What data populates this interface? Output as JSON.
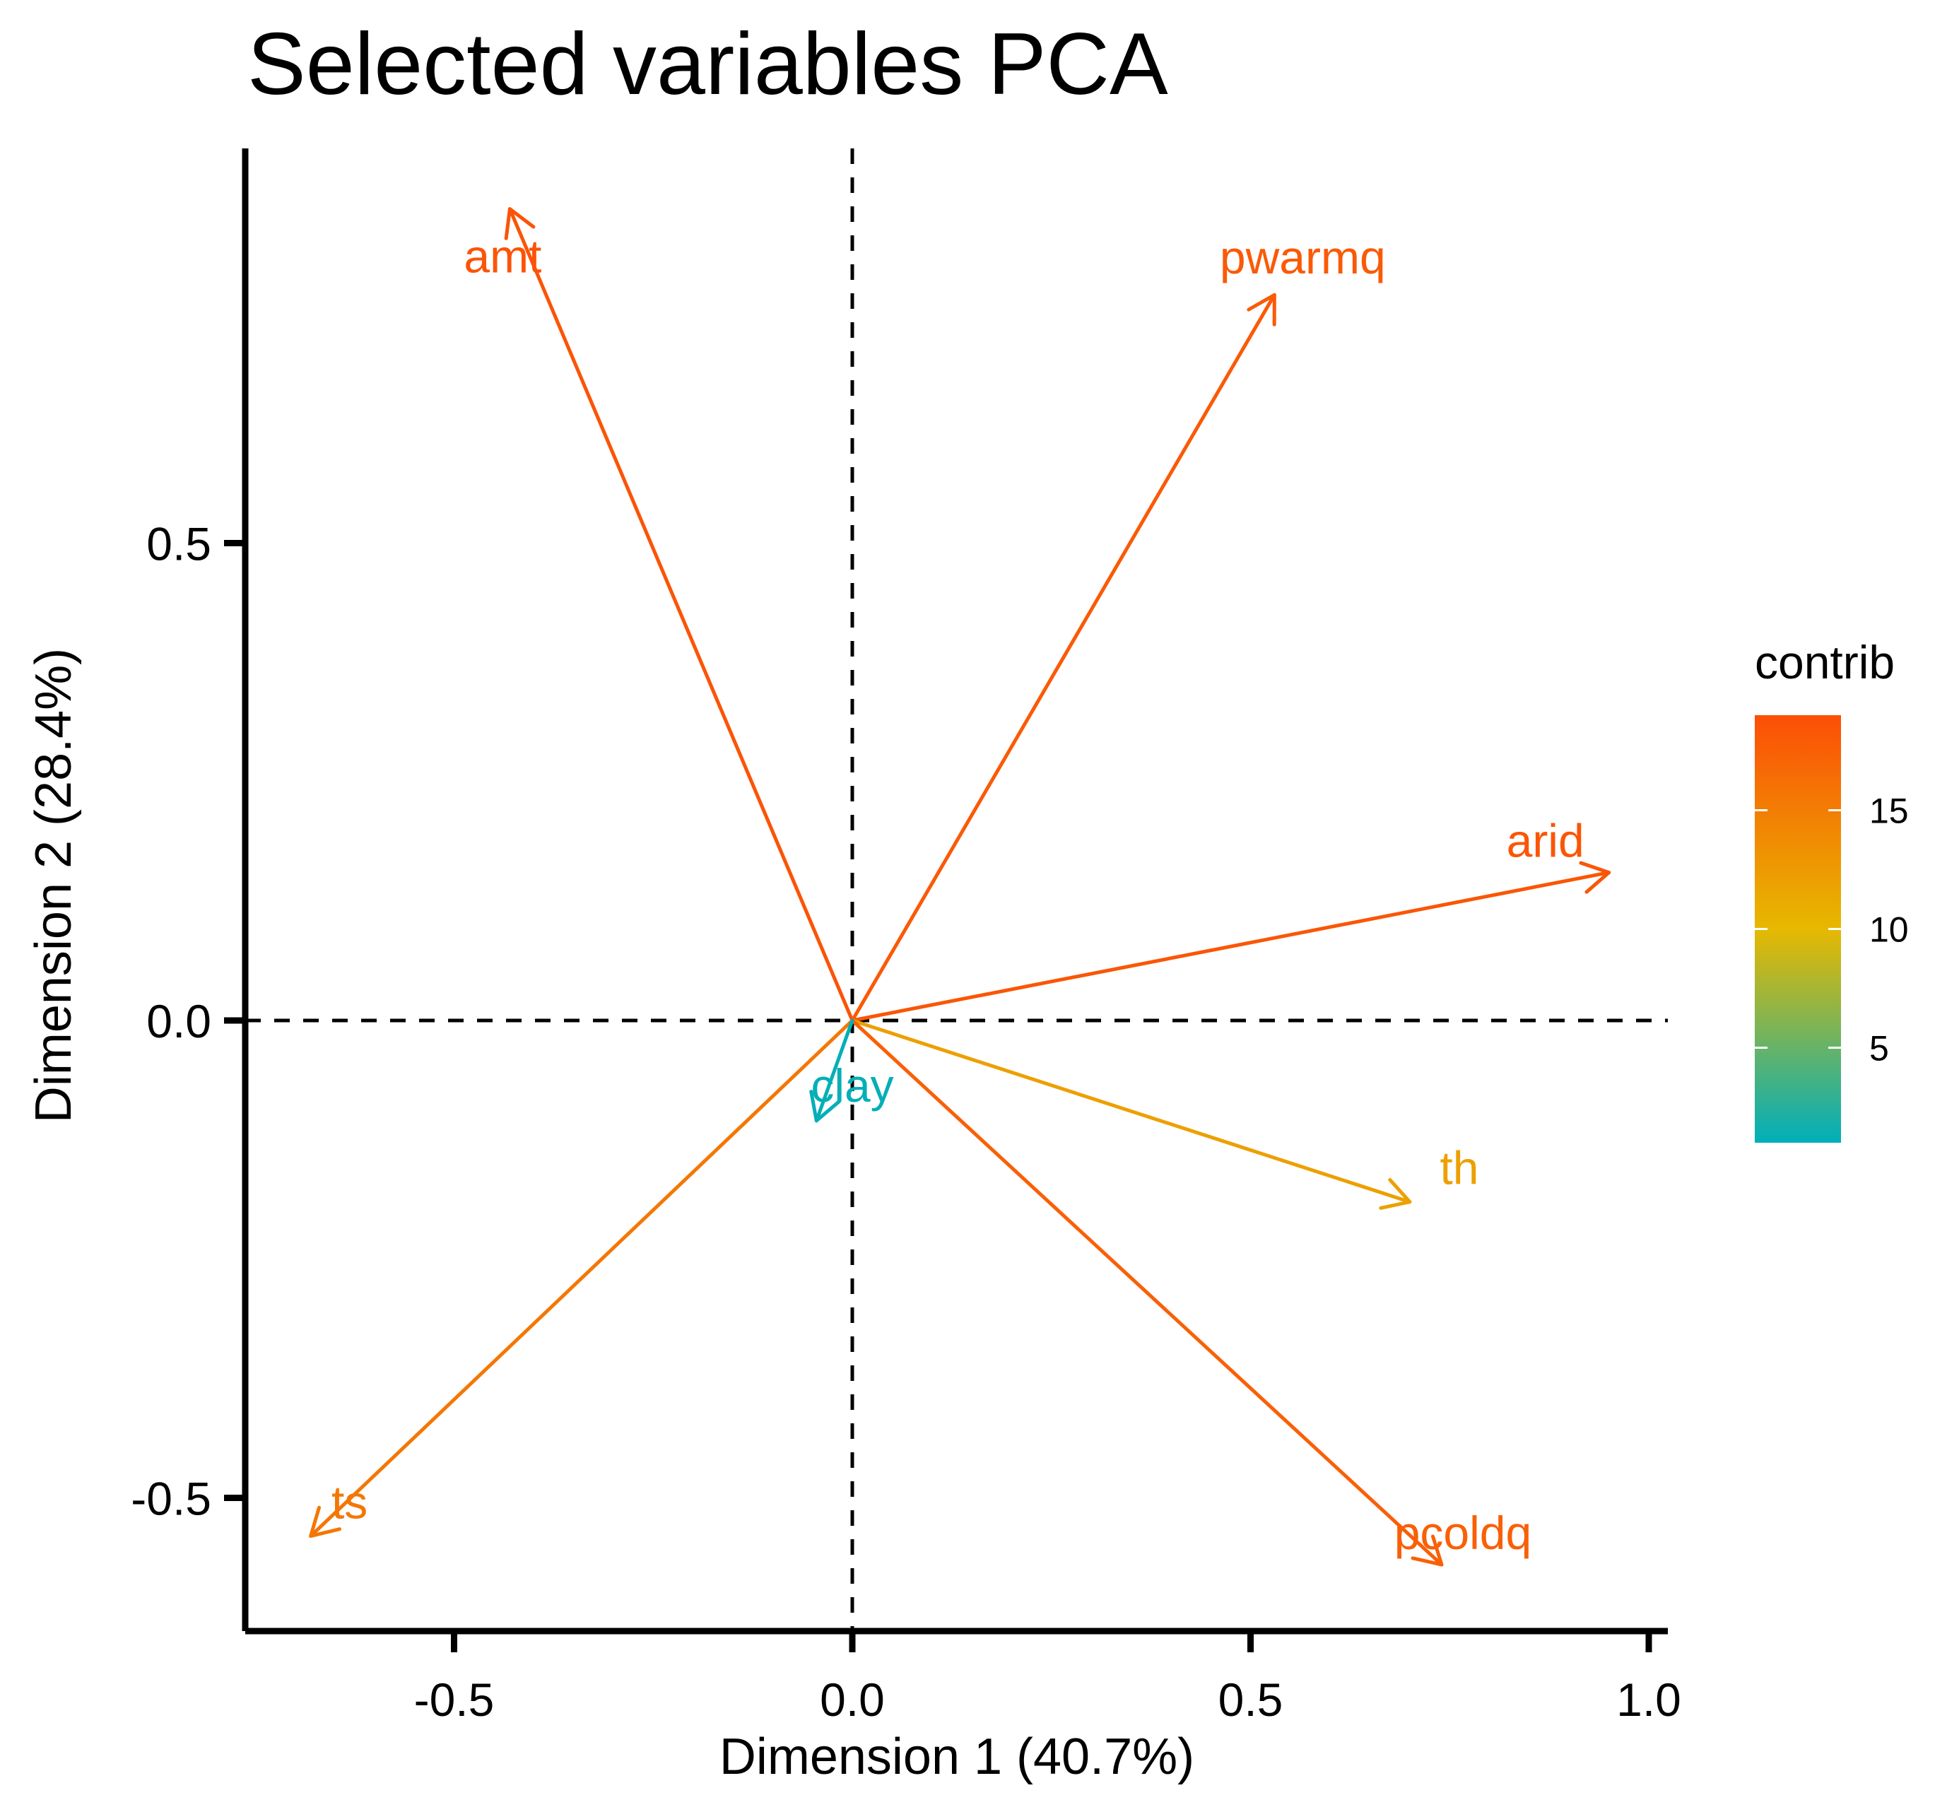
{
  "chart_data": {
    "type": "scatter",
    "subtype": "pca-variable-correlation-arrows",
    "title": "Selected variables PCA",
    "xlabel": "Dimension 1 (40.7%)",
    "ylabel": "Dimension 2 (28.4%)",
    "xlim": [
      -0.76,
      1.02
    ],
    "ylim": [
      -0.64,
      0.92
    ],
    "xticks": [
      -0.5,
      0.0,
      0.5,
      1.0
    ],
    "xtick_labels": [
      "-0.5",
      "0.0",
      "0.5",
      "1.0"
    ],
    "yticks": [
      -0.5,
      0.0,
      0.5
    ],
    "ytick_labels": [
      "-0.5",
      "0.0",
      "0.5"
    ],
    "reference_lines": {
      "x": 0,
      "y": 0,
      "style": "dashed"
    },
    "grid": false,
    "variables": [
      {
        "name": "amt",
        "x": -0.43,
        "y": 0.85,
        "contrib": 18.5
      },
      {
        "name": "pwarmq",
        "x": 0.53,
        "y": 0.76,
        "contrib": 18.0
      },
      {
        "name": "arid",
        "x": 0.95,
        "y": 0.155,
        "contrib": 18.3
      },
      {
        "name": "th",
        "x": 0.7,
        "y": -0.19,
        "contrib": 12.0
      },
      {
        "name": "pcoldq",
        "x": 0.74,
        "y": -0.57,
        "contrib": 17.5
      },
      {
        "name": "ts",
        "x": -0.68,
        "y": -0.54,
        "contrib": 15.5
      },
      {
        "name": "clay",
        "x": -0.045,
        "y": -0.105,
        "contrib": 1.2
      }
    ],
    "legend": {
      "title": "contrib",
      "type": "continuous-colorbar",
      "position": "right",
      "range": [
        1,
        19
      ],
      "ticks": [
        5,
        10,
        15
      ],
      "tick_labels": [
        "5",
        "10",
        "15"
      ],
      "gradient_colors": [
        "#00AFBB",
        "#E7B800",
        "#FC4E07"
      ]
    }
  }
}
